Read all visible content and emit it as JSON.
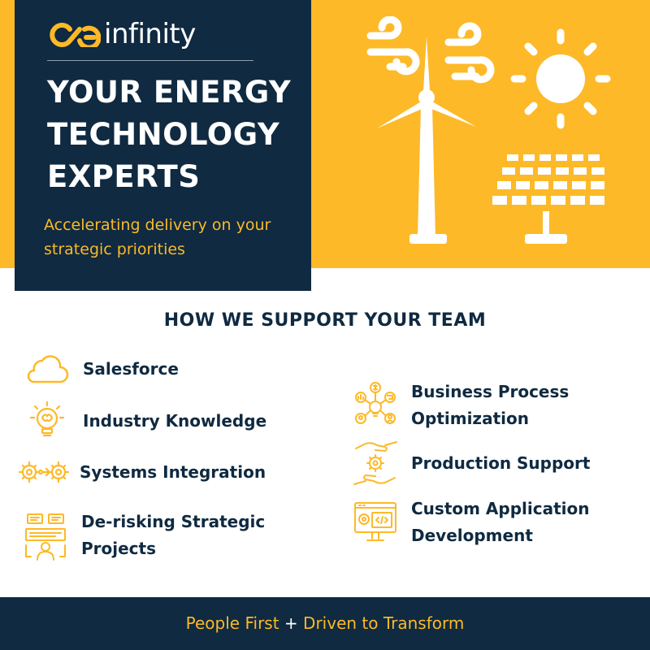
{
  "brand": {
    "name": "infinity",
    "logo_icon": "infinity-logo-icon"
  },
  "hero": {
    "headline": "YOUR ENERGY TECHNOLOGY EXPERTS",
    "tagline": "Accelerating delivery on your strategic priorities",
    "illustration": [
      "wind-turbine-icon",
      "wind-gust-icon",
      "sun-icon",
      "solar-panel-icon"
    ]
  },
  "support": {
    "title": "HOW WE SUPPORT YOUR TEAM",
    "left": [
      {
        "label": "Salesforce",
        "icon": "cloud-icon"
      },
      {
        "label": "Industry Knowledge",
        "icon": "lightbulb-brain-icon"
      },
      {
        "label": "Systems Integration",
        "icon": "gears-icon"
      },
      {
        "label": "De-risking Strategic Projects",
        "icon": "project-review-icon"
      }
    ],
    "right": [
      {
        "label": "Business Process Optimization",
        "icon": "process-network-icon"
      },
      {
        "label": "Production Support",
        "icon": "hand-gear-icon"
      },
      {
        "label": "Custom Application Development",
        "icon": "code-monitor-icon"
      }
    ]
  },
  "footer": {
    "part1": "People First",
    "plus": "+",
    "part2": "Driven to Transform"
  },
  "colors": {
    "gold": "#FDB927",
    "navy": "#0F2A41",
    "white": "#FFFFFF"
  }
}
